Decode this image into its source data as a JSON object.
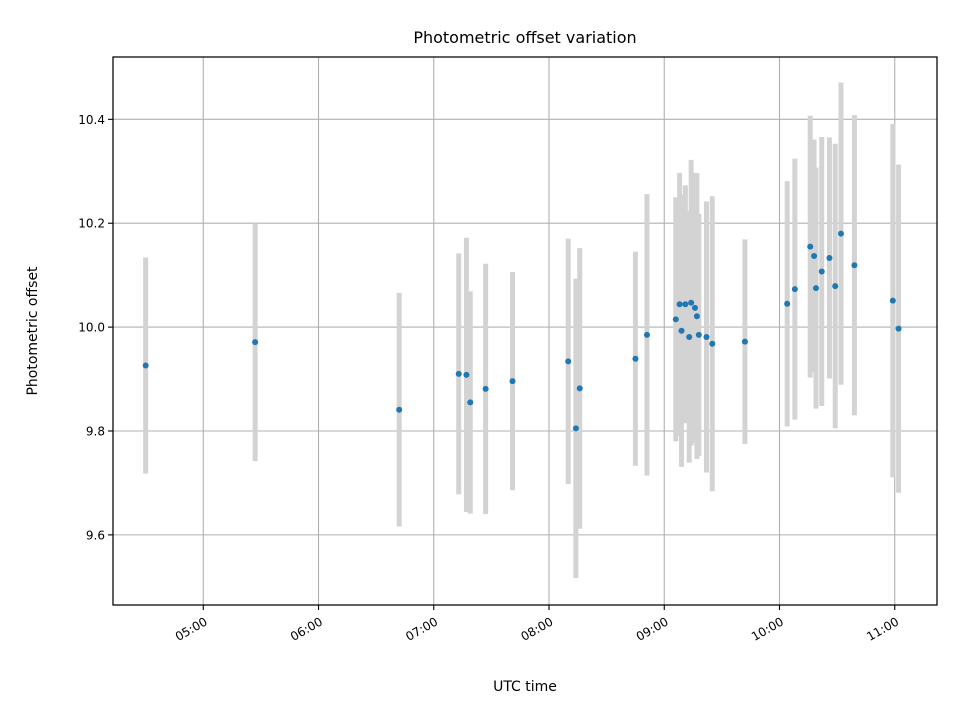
{
  "chart_data": {
    "type": "scatter",
    "title": "Photometric offset variation",
    "xlabel": "UTC time",
    "ylabel": "Photometric offset",
    "x_type": "time",
    "xlim": [
      "04:13",
      "11:22"
    ],
    "ylim": [
      9.465,
      10.52
    ],
    "x_ticks": [
      "05:00",
      "06:00",
      "07:00",
      "08:00",
      "09:00",
      "10:00",
      "11:00"
    ],
    "y_ticks": [
      "9.6",
      "9.8",
      "10.0",
      "10.2",
      "10.4"
    ],
    "grid": true,
    "legend": "none",
    "colors": {
      "point": "#1f77b4",
      "errorbar": "#d3d3d3",
      "grid": "#b0b0b0"
    },
    "points": [
      {
        "x": "04:30",
        "y": 9.926,
        "err": 0.208
      },
      {
        "x": "05:27",
        "y": 9.971,
        "err": 0.229
      },
      {
        "x": "06:42",
        "y": 9.841,
        "err": 0.225
      },
      {
        "x": "07:13",
        "y": 9.91,
        "err": 0.232
      },
      {
        "x": "07:17",
        "y": 9.908,
        "err": 0.264
      },
      {
        "x": "07:19",
        "y": 9.855,
        "err": 0.214
      },
      {
        "x": "07:27",
        "y": 9.881,
        "err": 0.241
      },
      {
        "x": "07:41",
        "y": 9.896,
        "err": 0.21
      },
      {
        "x": "08:10",
        "y": 9.934,
        "err": 0.236
      },
      {
        "x": "08:14",
        "y": 9.805,
        "err": 0.288
      },
      {
        "x": "08:16",
        "y": 9.882,
        "err": 0.27
      },
      {
        "x": "08:45",
        "y": 9.939,
        "err": 0.206
      },
      {
        "x": "08:51",
        "y": 9.985,
        "err": 0.271
      },
      {
        "x": "09:06",
        "y": 10.015,
        "err": 0.235
      },
      {
        "x": "09:08",
        "y": 10.044,
        "err": 0.253
      },
      {
        "x": "09:09",
        "y": 9.993,
        "err": 0.262
      },
      {
        "x": "09:11",
        "y": 10.044,
        "err": 0.229
      },
      {
        "x": "09:13",
        "y": 9.981,
        "err": 0.242
      },
      {
        "x": "09:14",
        "y": 10.047,
        "err": 0.275
      },
      {
        "x": "09:16",
        "y": 10.037,
        "err": 0.26
      },
      {
        "x": "09:17",
        "y": 10.021,
        "err": 0.275
      },
      {
        "x": "09:18",
        "y": 9.985,
        "err": 0.233
      },
      {
        "x": "09:22",
        "y": 9.981,
        "err": 0.261
      },
      {
        "x": "09:25",
        "y": 9.968,
        "err": 0.284
      },
      {
        "x": "09:42",
        "y": 9.972,
        "err": 0.197
      },
      {
        "x": "10:04",
        "y": 10.045,
        "err": 0.236
      },
      {
        "x": "10:08",
        "y": 10.073,
        "err": 0.251
      },
      {
        "x": "10:16",
        "y": 10.155,
        "err": 0.252
      },
      {
        "x": "10:18",
        "y": 10.137,
        "err": 0.224
      },
      {
        "x": "10:19",
        "y": 10.075,
        "err": 0.232
      },
      {
        "x": "10:22",
        "y": 10.107,
        "err": 0.259
      },
      {
        "x": "10:26",
        "y": 10.133,
        "err": 0.232
      },
      {
        "x": "10:29",
        "y": 10.079,
        "err": 0.274
      },
      {
        "x": "10:32",
        "y": 10.18,
        "err": 0.291
      },
      {
        "x": "10:39",
        "y": 10.119,
        "err": 0.289
      },
      {
        "x": "10:59",
        "y": 10.051,
        "err": 0.34
      },
      {
        "x": "11:02",
        "y": 9.997,
        "err": 0.316
      }
    ]
  }
}
